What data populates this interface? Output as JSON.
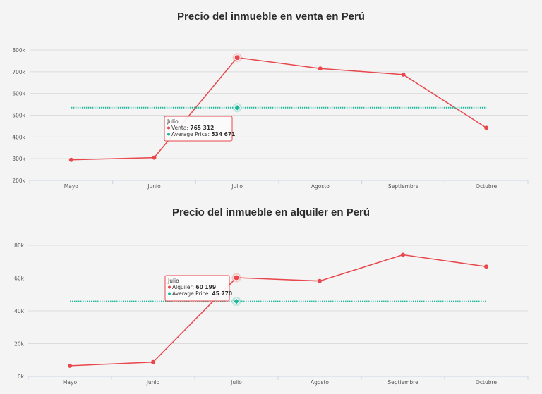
{
  "chart_data": [
    {
      "type": "line",
      "title": "Precio del inmueble en venta en Perú",
      "categories": [
        "Mayo",
        "Junio",
        "Julio",
        "Agosto",
        "Septiembre",
        "Octubre"
      ],
      "ylim": [
        200000,
        800000
      ],
      "yticks": [
        200000,
        300000,
        400000,
        500000,
        600000,
        700000,
        800000
      ],
      "ytick_labels": [
        "200k",
        "300k",
        "400k",
        "500k",
        "600k",
        "700k",
        "800k"
      ],
      "grid": true,
      "series": [
        {
          "name": "Venta",
          "color": "#e8474c",
          "style": "solid",
          "values": [
            295000,
            305000,
            765312,
            715000,
            687000,
            442000
          ]
        },
        {
          "name": "Average Price",
          "color": "#1fb89a",
          "style": "dotted",
          "values": [
            534671,
            534671,
            534671,
            534671,
            534671,
            534671
          ]
        }
      ],
      "tooltip": {
        "category": "Julio",
        "rows": [
          {
            "label": "Venta:",
            "value": "765 312"
          },
          {
            "label": "Average Price:",
            "value": "534 671"
          }
        ]
      }
    },
    {
      "type": "line",
      "title": "Precio del inmueble en alquiler en Perú",
      "categories": [
        "Mayo",
        "Junio",
        "Julio",
        "Agosto",
        "Septiembre",
        "Octubre"
      ],
      "ylim": [
        0,
        80000
      ],
      "yticks": [
        0,
        20000,
        40000,
        60000,
        80000
      ],
      "ytick_labels": [
        "0k",
        "20k",
        "40k",
        "60k",
        "80k"
      ],
      "grid": true,
      "series": [
        {
          "name": "Alquiler",
          "color": "#e8474c",
          "style": "solid",
          "values": [
            6500,
            8700,
            60199,
            58200,
            74200,
            67000
          ]
        },
        {
          "name": "Average Price",
          "color": "#1fb89a",
          "style": "dotted",
          "values": [
            45770,
            45770,
            45770,
            45770,
            45770,
            45770
          ]
        }
      ],
      "tooltip": {
        "category": "Julio",
        "rows": [
          {
            "label": "Alquiler:",
            "value": "60 199"
          },
          {
            "label": "Average Price:",
            "value": "45 770"
          }
        ]
      }
    }
  ]
}
